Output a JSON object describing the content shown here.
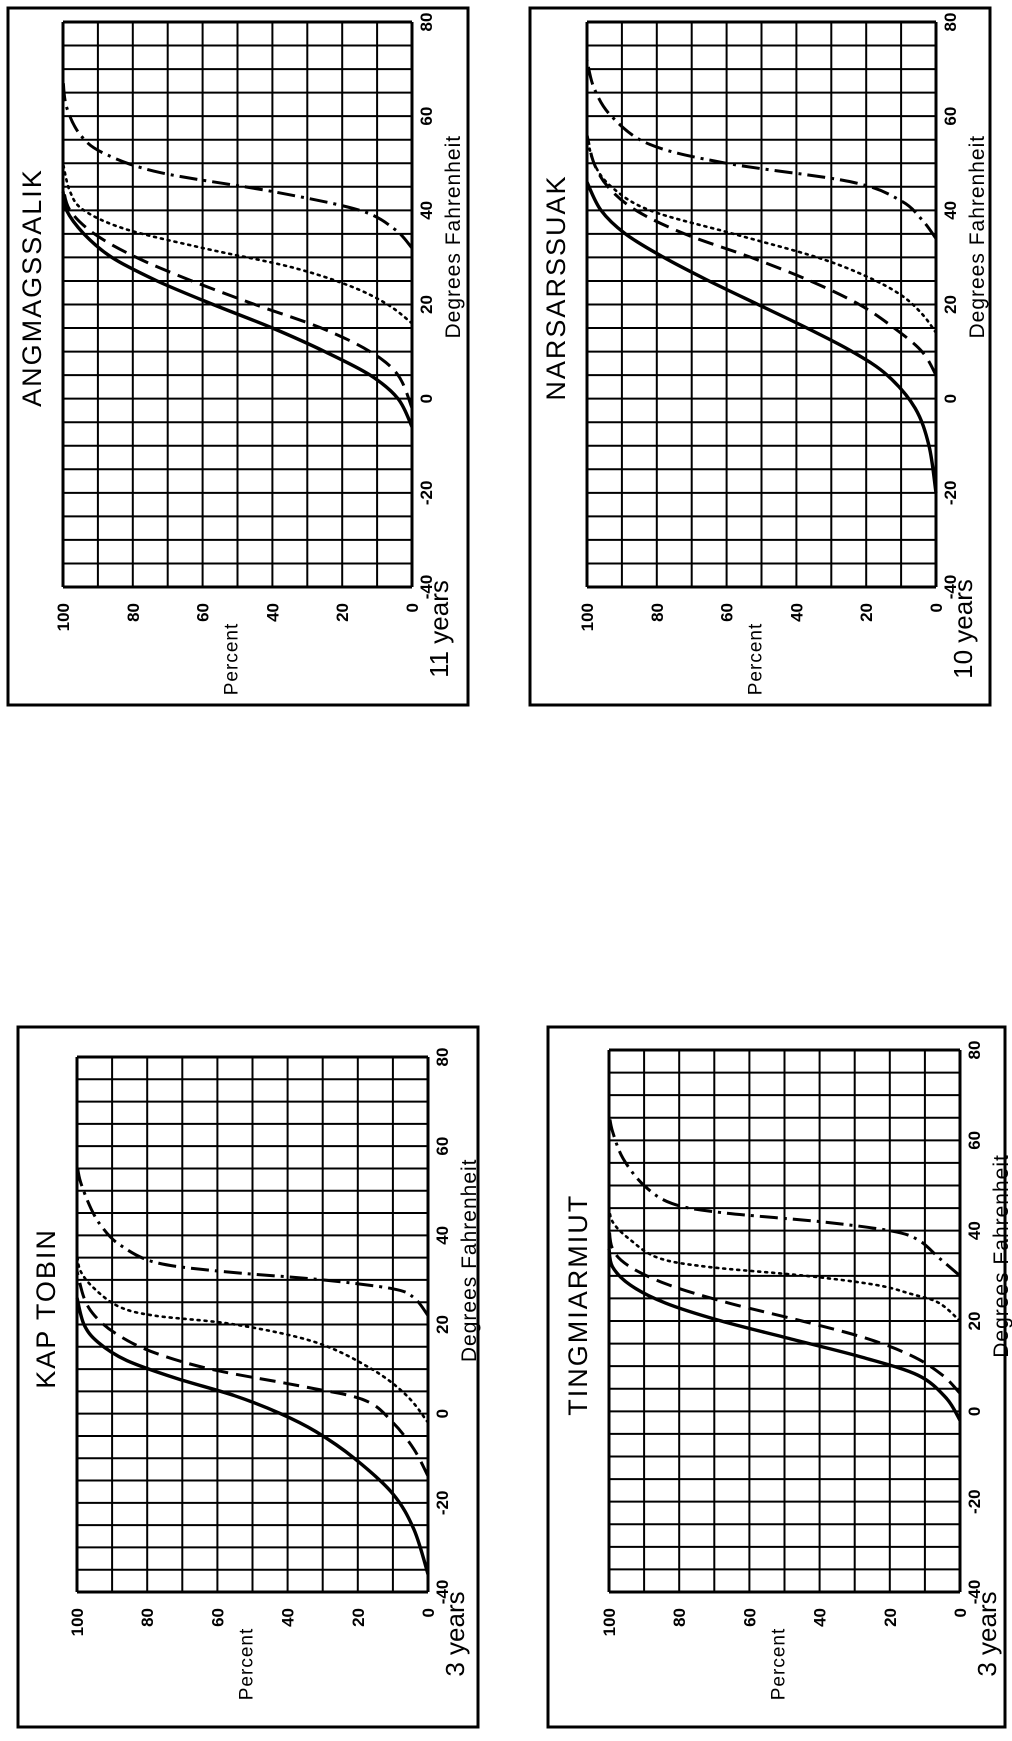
{
  "charts": [
    {
      "id": "angmagssalik",
      "title": "ANGMAGSSALIK",
      "years": "11 years",
      "ylabel": "Percent",
      "xlabel": "Degrees Fahrenheit"
    },
    {
      "id": "narsarssuak",
      "title": "NARSARSSUAK",
      "years": "10 years",
      "ylabel": "Percent",
      "xlabel": "Degrees Fahrenheit"
    },
    {
      "id": "kap_tobin",
      "title": "KAP TOBIN",
      "years": "3 years",
      "ylabel": "Percent",
      "xlabel": "Degrees Fahrenheit"
    },
    {
      "id": "tingmiarmiut",
      "title": "TINGMIARMIUT",
      "years": "3 years",
      "ylabel": "Percent",
      "xlabel": "Degrees Fahrenheit"
    }
  ],
  "chart_data": [
    {
      "type": "line",
      "title": "ANGMAGSSALIK",
      "xlabel": "Degrees Fahrenheit",
      "ylabel": "Percent",
      "xlim": [
        -40,
        80
      ],
      "ylim": [
        0,
        100
      ],
      "xticks": [
        -40,
        -20,
        0,
        20,
        40,
        60,
        80
      ],
      "yticks": [
        0,
        20,
        40,
        60,
        80,
        100
      ],
      "grid": true,
      "series": [
        {
          "style": "solid",
          "x": [
            -6,
            0,
            5,
            10,
            15,
            20,
            25,
            30,
            35,
            40,
            44
          ],
          "y": [
            0,
            4,
            12,
            25,
            40,
            57,
            73,
            86,
            94,
            99,
            100
          ]
        },
        {
          "style": "dashed",
          "x": [
            -2,
            5,
            10,
            15,
            20,
            25,
            30,
            35,
            40,
            45
          ],
          "y": [
            0,
            4,
            12,
            26,
            45,
            63,
            79,
            91,
            98,
            100
          ]
        },
        {
          "style": "dotted",
          "x": [
            16,
            20,
            24,
            28,
            32,
            36,
            40,
            44,
            50
          ],
          "y": [
            0,
            7,
            18,
            35,
            60,
            82,
            94,
            98,
            100
          ]
        },
        {
          "style": "dashdot",
          "x": [
            32,
            36,
            40,
            44,
            48,
            52,
            56,
            62,
            68
          ],
          "y": [
            0,
            5,
            15,
            40,
            72,
            88,
            95,
            99,
            100
          ]
        }
      ]
    },
    {
      "type": "line",
      "title": "NARSARSSUAK",
      "xlabel": "Degrees Fahrenheit",
      "ylabel": "Percent",
      "xlim": [
        -40,
        80
      ],
      "ylim": [
        0,
        100
      ],
      "xticks": [
        -40,
        -20,
        0,
        20,
        40,
        60,
        80
      ],
      "yticks": [
        0,
        20,
        40,
        60,
        80,
        100
      ],
      "grid": true,
      "series": [
        {
          "style": "solid",
          "x": [
            -20,
            -10,
            -2,
            5,
            10,
            15,
            20,
            25,
            30,
            35,
            40,
            46
          ],
          "y": [
            0,
            2,
            6,
            14,
            24,
            37,
            51,
            65,
            78,
            89,
            96,
            100
          ]
        },
        {
          "style": "dashed",
          "x": [
            5,
            10,
            15,
            20,
            25,
            30,
            35,
            40,
            45,
            50,
            56
          ],
          "y": [
            0,
            4,
            12,
            22,
            36,
            53,
            72,
            86,
            94,
            98,
            100
          ]
        },
        {
          "style": "dotted",
          "x": [
            14,
            18,
            22,
            26,
            30,
            35,
            40,
            45,
            50,
            56
          ],
          "y": [
            0,
            4,
            10,
            20,
            34,
            58,
            82,
            93,
            98,
            100
          ]
        },
        {
          "style": "dashdot",
          "x": [
            34,
            38,
            42,
            46,
            50,
            54,
            60,
            66,
            72
          ],
          "y": [
            0,
            4,
            10,
            24,
            60,
            82,
            93,
            98,
            100
          ]
        }
      ]
    },
    {
      "type": "line",
      "title": "KAP TOBIN",
      "xlabel": "Degrees Fahrenheit",
      "ylabel": "Percent",
      "xlim": [
        -40,
        80
      ],
      "ylim": [
        0,
        100
      ],
      "xticks": [
        -40,
        -20,
        0,
        20,
        40,
        60,
        80
      ],
      "yticks": [
        0,
        20,
        40,
        60,
        80,
        100
      ],
      "grid": true,
      "series": [
        {
          "style": "solid",
          "x": [
            -36,
            -26,
            -18,
            -10,
            -4,
            0,
            4,
            8,
            12,
            16,
            20,
            26
          ],
          "y": [
            0,
            4,
            10,
            21,
            32,
            42,
            55,
            72,
            86,
            94,
            98,
            100
          ]
        },
        {
          "style": "dashed",
          "x": [
            -14,
            -8,
            -2,
            3,
            6,
            10,
            14,
            18,
            22,
            26,
            32
          ],
          "y": [
            0,
            4,
            10,
            18,
            35,
            62,
            79,
            89,
            95,
            98,
            100
          ]
        },
        {
          "style": "dotted",
          "x": [
            -2,
            4,
            10,
            16,
            20,
            22,
            24,
            28,
            32,
            36
          ],
          "y": [
            0,
            6,
            16,
            32,
            55,
            78,
            88,
            95,
            99,
            100
          ]
        },
        {
          "style": "dashdot",
          "x": [
            22,
            26,
            28,
            30,
            32,
            34,
            38,
            42,
            46,
            52,
            56
          ],
          "y": [
            0,
            4,
            10,
            30,
            60,
            78,
            88,
            93,
            96,
            99,
            100
          ]
        }
      ]
    },
    {
      "type": "line",
      "title": "TINGMIARMIUT",
      "xlabel": "Degrees Fahrenheit",
      "ylabel": "Percent",
      "xlim": [
        -40,
        80
      ],
      "ylim": [
        0,
        100
      ],
      "xticks": [
        -40,
        -20,
        0,
        20,
        40,
        60,
        80
      ],
      "yticks": [
        0,
        20,
        40,
        60,
        80,
        100
      ],
      "grid": true,
      "series": [
        {
          "style": "solid",
          "x": [
            -2,
            3,
            8,
            12,
            16,
            20,
            24,
            28,
            32,
            36
          ],
          "y": [
            0,
            4,
            12,
            28,
            48,
            68,
            84,
            94,
            99,
            100
          ]
        },
        {
          "style": "dashed",
          "x": [
            4,
            8,
            12,
            16,
            20,
            24,
            28,
            32,
            36,
            42
          ],
          "y": [
            0,
            5,
            13,
            26,
            45,
            66,
            83,
            94,
            99,
            100
          ]
        },
        {
          "style": "dotted",
          "x": [
            20,
            24,
            26,
            28,
            30,
            32,
            34,
            38,
            42,
            46
          ],
          "y": [
            0,
            6,
            14,
            24,
            44,
            72,
            86,
            94,
            99,
            100
          ]
        },
        {
          "style": "dashdot",
          "x": [
            30,
            34,
            38,
            40,
            42,
            44,
            46,
            50,
            56,
            62,
            66
          ],
          "y": [
            0,
            6,
            12,
            20,
            40,
            68,
            82,
            90,
            96,
            99,
            100
          ]
        }
      ]
    }
  ]
}
